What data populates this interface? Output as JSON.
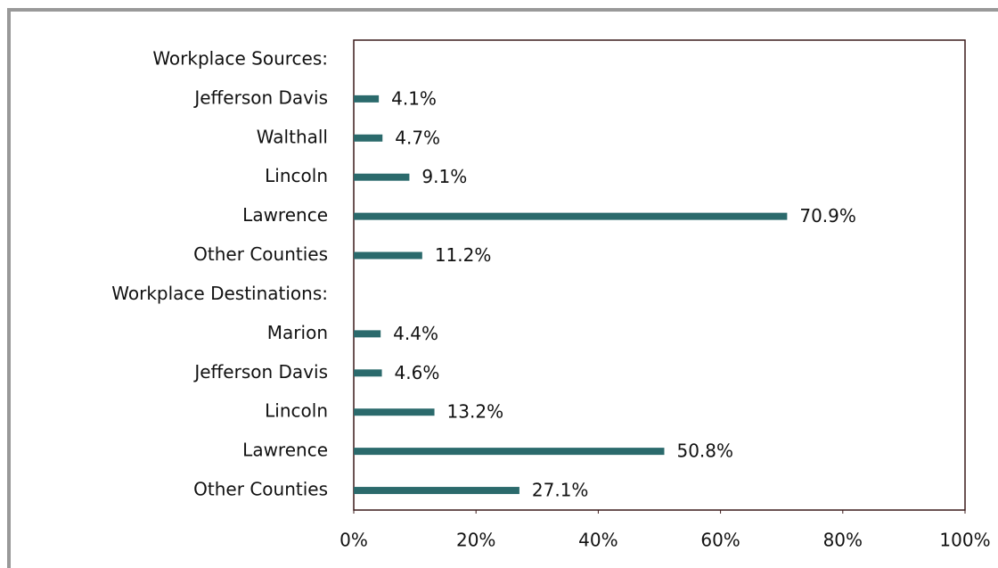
{
  "chart_data": {
    "type": "bar",
    "orientation": "horizontal",
    "categories": [
      "Workplace Sources:",
      "Jefferson Davis",
      "Walthall",
      "Lincoln",
      "Lawrence",
      "Other Counties",
      "Workplace Destinations:",
      "Marion",
      "Jefferson Davis",
      "Lincoln",
      "Lawrence",
      "Other Counties"
    ],
    "values": [
      null,
      4.1,
      4.7,
      9.1,
      70.9,
      11.2,
      null,
      4.4,
      4.6,
      13.2,
      50.8,
      27.1
    ],
    "value_labels": [
      null,
      "4.1%",
      "4.7%",
      "9.1%",
      "70.9%",
      "11.2%",
      null,
      "4.4%",
      "4.6%",
      "13.2%",
      "50.8%",
      "27.1%"
    ],
    "color": "#2b6a6c",
    "xlim": [
      0,
      100
    ],
    "xticks": [
      {
        "value": 0,
        "label": "0%"
      },
      {
        "value": 20,
        "label": "20%"
      },
      {
        "value": 40,
        "label": "40%"
      },
      {
        "value": 60,
        "label": "60%"
      },
      {
        "value": 80,
        "label": "80%"
      },
      {
        "value": 100,
        "label": "100%"
      }
    ],
    "grid": false
  }
}
